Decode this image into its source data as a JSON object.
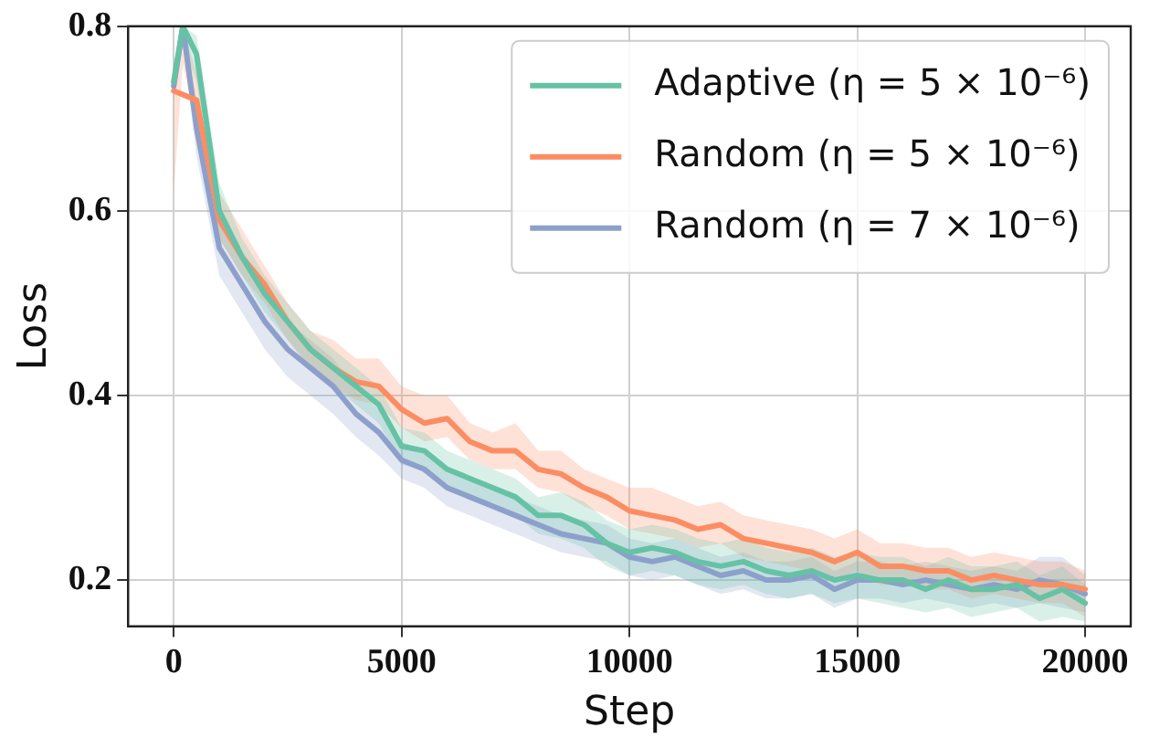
{
  "chart_data": {
    "type": "line",
    "xlabel": "Step",
    "ylabel": "Loss",
    "x": [
      0,
      200,
      500,
      1000,
      1500,
      2000,
      2500,
      3000,
      3500,
      4000,
      4500,
      5000,
      5500,
      6000,
      6500,
      7000,
      7500,
      8000,
      8500,
      9000,
      9500,
      10000,
      10500,
      11000,
      11500,
      12000,
      12500,
      13000,
      13500,
      14000,
      14500,
      15000,
      15500,
      16000,
      16500,
      17000,
      17500,
      18000,
      18500,
      19000,
      19500,
      20000
    ],
    "series": [
      {
        "name": "Adaptive (η = 5 × 10⁻⁶)",
        "color": "#66c2a5",
        "values": [
          0.74,
          0.8,
          0.77,
          0.6,
          0.55,
          0.51,
          0.48,
          0.45,
          0.43,
          0.41,
          0.39,
          0.345,
          0.34,
          0.32,
          0.31,
          0.3,
          0.29,
          0.27,
          0.27,
          0.26,
          0.24,
          0.23,
          0.235,
          0.23,
          0.22,
          0.215,
          0.22,
          0.21,
          0.205,
          0.21,
          0.2,
          0.205,
          0.2,
          0.2,
          0.19,
          0.2,
          0.19,
          0.19,
          0.195,
          0.18,
          0.19,
          0.175
        ],
        "lower": [
          0.72,
          0.78,
          0.74,
          0.57,
          0.53,
          0.49,
          0.46,
          0.43,
          0.41,
          0.39,
          0.37,
          0.325,
          0.32,
          0.3,
          0.29,
          0.28,
          0.27,
          0.25,
          0.245,
          0.235,
          0.215,
          0.205,
          0.21,
          0.205,
          0.195,
          0.19,
          0.195,
          0.185,
          0.18,
          0.185,
          0.175,
          0.18,
          0.175,
          0.17,
          0.165,
          0.17,
          0.16,
          0.165,
          0.17,
          0.155,
          0.16,
          0.155
        ],
        "upper": [
          0.76,
          0.8,
          0.79,
          0.63,
          0.57,
          0.53,
          0.5,
          0.47,
          0.45,
          0.43,
          0.41,
          0.365,
          0.36,
          0.34,
          0.33,
          0.32,
          0.31,
          0.29,
          0.295,
          0.285,
          0.265,
          0.255,
          0.26,
          0.255,
          0.245,
          0.24,
          0.245,
          0.235,
          0.23,
          0.235,
          0.225,
          0.23,
          0.225,
          0.225,
          0.215,
          0.225,
          0.215,
          0.215,
          0.22,
          0.205,
          0.215,
          0.195
        ]
      },
      {
        "name": "Random (η = 5 × 10⁻⁶)",
        "color": "#fc8d62",
        "values": [
          0.73,
          null,
          0.72,
          0.59,
          0.55,
          0.52,
          0.48,
          0.45,
          0.43,
          0.415,
          0.41,
          0.385,
          0.37,
          0.375,
          0.35,
          0.34,
          0.34,
          0.32,
          0.315,
          0.3,
          0.29,
          0.275,
          0.27,
          0.265,
          0.255,
          0.26,
          0.245,
          0.24,
          0.235,
          0.23,
          0.22,
          0.23,
          0.215,
          0.215,
          0.21,
          0.21,
          0.2,
          0.205,
          0.2,
          0.195,
          0.195,
          0.19
        ],
        "lower": [
          0.62,
          0.76,
          0.69,
          0.57,
          0.53,
          0.5,
          0.46,
          0.43,
          0.41,
          0.395,
          0.39,
          0.365,
          0.35,
          0.355,
          0.33,
          0.32,
          0.32,
          0.3,
          0.295,
          0.28,
          0.27,
          0.255,
          0.25,
          0.245,
          0.235,
          0.24,
          0.225,
          0.22,
          0.215,
          0.21,
          0.2,
          0.21,
          0.195,
          0.195,
          0.19,
          0.19,
          0.18,
          0.185,
          0.18,
          0.175,
          0.175,
          0.16
        ],
        "upper": [
          0.76,
          0.8,
          0.75,
          0.62,
          0.58,
          0.54,
          0.5,
          0.47,
          0.46,
          0.44,
          0.44,
          0.41,
          0.4,
          0.4,
          0.37,
          0.36,
          0.37,
          0.34,
          0.34,
          0.32,
          0.31,
          0.3,
          0.3,
          0.29,
          0.28,
          0.285,
          0.27,
          0.265,
          0.26,
          0.255,
          0.245,
          0.255,
          0.24,
          0.24,
          0.235,
          0.235,
          0.225,
          0.23,
          0.225,
          0.22,
          0.22,
          0.21
        ]
      },
      {
        "name": "Random (η = 7 × 10⁻⁶)",
        "color": "#8da0cb",
        "values": [
          0.735,
          0.8,
          0.69,
          0.56,
          0.52,
          0.48,
          0.45,
          0.43,
          0.41,
          0.38,
          0.36,
          0.33,
          0.32,
          0.3,
          0.29,
          0.28,
          0.27,
          0.26,
          0.25,
          0.245,
          0.24,
          0.225,
          0.22,
          0.225,
          0.215,
          0.205,
          0.21,
          0.2,
          0.2,
          0.205,
          0.19,
          0.2,
          0.2,
          0.195,
          0.2,
          0.195,
          0.19,
          0.195,
          0.19,
          0.2,
          0.195,
          0.185
        ],
        "lower": [
          0.72,
          0.78,
          0.66,
          0.53,
          0.49,
          0.45,
          0.42,
          0.4,
          0.38,
          0.355,
          0.335,
          0.31,
          0.3,
          0.28,
          0.27,
          0.26,
          0.25,
          0.24,
          0.23,
          0.225,
          0.22,
          0.205,
          0.2,
          0.205,
          0.195,
          0.185,
          0.19,
          0.18,
          0.18,
          0.185,
          0.17,
          0.18,
          0.18,
          0.175,
          0.18,
          0.175,
          0.17,
          0.175,
          0.17,
          0.175,
          0.17,
          0.165
        ],
        "upper": [
          0.75,
          0.8,
          0.72,
          0.59,
          0.55,
          0.51,
          0.48,
          0.46,
          0.44,
          0.405,
          0.385,
          0.35,
          0.34,
          0.32,
          0.31,
          0.3,
          0.29,
          0.28,
          0.27,
          0.265,
          0.26,
          0.245,
          0.24,
          0.245,
          0.235,
          0.225,
          0.23,
          0.22,
          0.22,
          0.225,
          0.21,
          0.22,
          0.22,
          0.215,
          0.22,
          0.215,
          0.21,
          0.215,
          0.21,
          0.225,
          0.225,
          0.205
        ]
      }
    ],
    "xlim": [
      -1000,
      21000
    ],
    "xticks": [
      0,
      5000,
      10000,
      15000,
      20000
    ],
    "ylim": [
      0.15,
      0.8
    ],
    "yticks": [
      {
        "value": 0.2,
        "label": "0.2"
      },
      {
        "value": 0.4,
        "label": "0.4"
      },
      {
        "value": 0.6,
        "label": "0.6"
      },
      {
        "value": 0.8,
        "label": "0.8"
      }
    ],
    "grid": true,
    "legend": "top right",
    "marker": "none",
    "line_style": "solid"
  }
}
